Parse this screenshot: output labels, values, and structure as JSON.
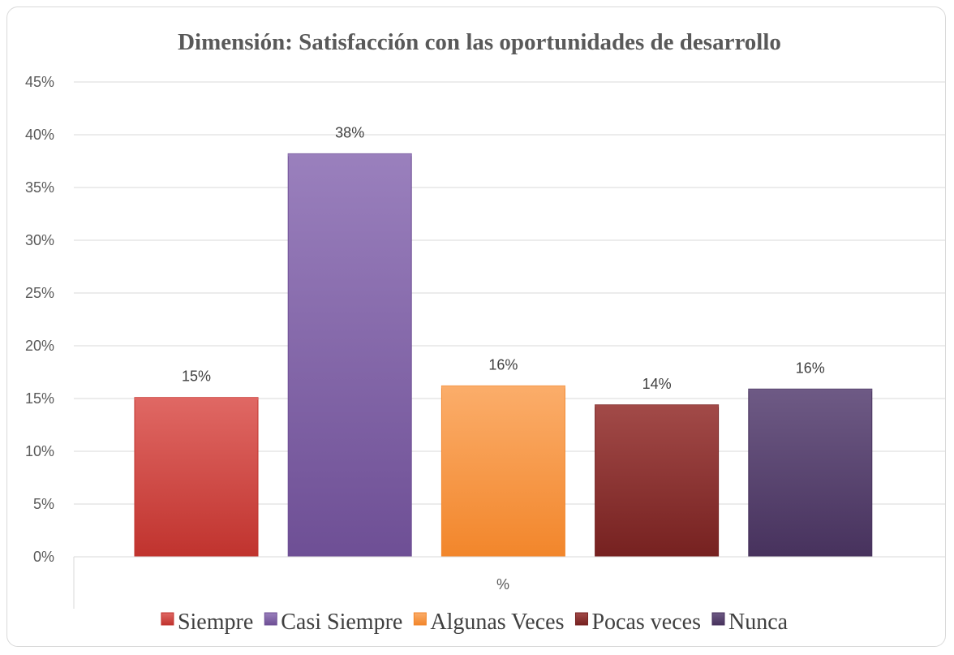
{
  "chart_data": {
    "type": "bar",
    "title": "Dimensión: Satisfacción con las oportunidades de desarrollo",
    "categories": [
      "%"
    ],
    "y_tick_labels": [
      "0%",
      "5%",
      "10%",
      "15%",
      "20%",
      "25%",
      "30%",
      "35%",
      "40%",
      "45%"
    ],
    "ylim": [
      0,
      45
    ],
    "grid": true,
    "legend_position": "bottom",
    "series": [
      {
        "name": "Siempre",
        "value": 15.1,
        "label": "15%",
        "color": "#d0504c",
        "color_top": "#e06864",
        "color_bottom": "#c0332e"
      },
      {
        "name": "Casi Siempre",
        "value": 38.2,
        "label": "38%",
        "color": "#8064a2",
        "color_top": "#9a80bd",
        "color_bottom": "#6e4f95"
      },
      {
        "name": "Algunas Veces",
        "value": 16.2,
        "label": "16%",
        "color": "#f79646",
        "color_top": "#fbad6a",
        "color_bottom": "#f2862b"
      },
      {
        "name": "Pocas veces",
        "value": 14.4,
        "label": "14%",
        "color": "#8c3433",
        "color_top": "#a24a48",
        "color_bottom": "#762120"
      },
      {
        "name": "Nunca",
        "value": 15.9,
        "label": "16%",
        "color": "#5a4570",
        "color_top": "#6e5a85",
        "color_bottom": "#47325d"
      }
    ]
  }
}
